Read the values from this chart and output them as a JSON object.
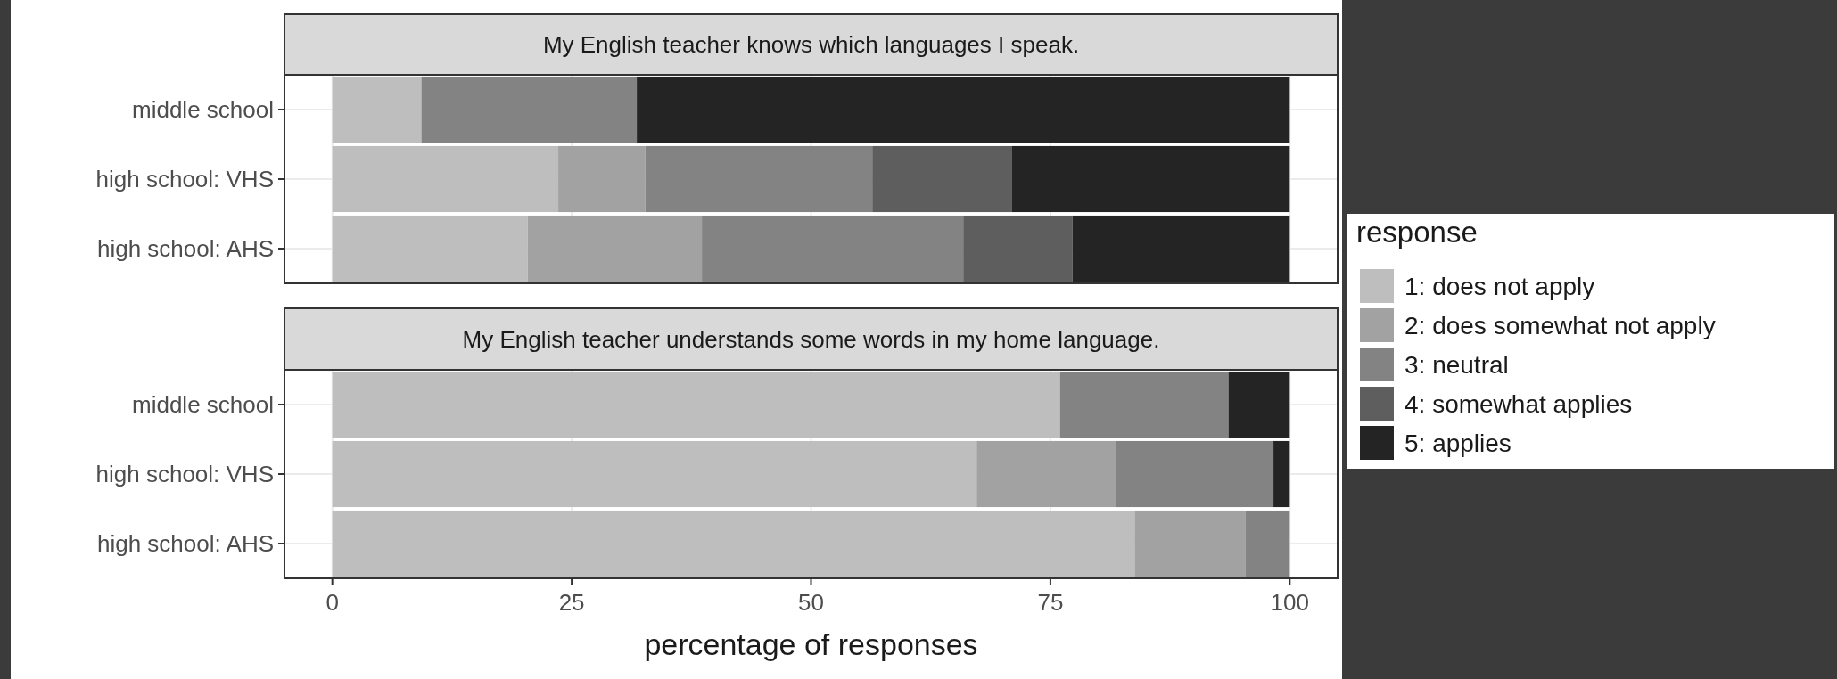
{
  "chart_data": [
    {
      "type": "bar",
      "orientation": "horizontal",
      "stacked": true,
      "title": "My English teacher knows which languages I speak.",
      "categories": [
        "middle school",
        "high school: VHS",
        "high school: AHS"
      ],
      "xlim": [
        -5,
        105
      ],
      "xticks": [
        0,
        25,
        50,
        75,
        100
      ],
      "tick_labels": "y",
      "grid": true,
      "series": [
        {
          "color": "#bebebe",
          "values": [
            9.3,
            23.6,
            20.4
          ]
        },
        {
          "color": "#a2a2a2",
          "values": [
            0,
            9.1,
            18.2
          ]
        },
        {
          "color": "#838383",
          "values": [
            22.5,
            23.7,
            27.3
          ]
        },
        {
          "color": "#5e5e5e",
          "values": [
            0,
            14.6,
            11.4
          ]
        },
        {
          "color": "#242424",
          "values": [
            68.2,
            29,
            22.7
          ]
        }
      ]
    },
    {
      "type": "bar",
      "orientation": "horizontal",
      "stacked": true,
      "title": "My English teacher understands some words in my home language.",
      "xlabel": "percentage of responses",
      "legend_title": "response",
      "categories": [
        "middle school",
        "high school: VHS",
        "high school: AHS"
      ],
      "xlim": [
        -5,
        105
      ],
      "xticks": [
        0,
        25,
        50,
        75,
        100
      ],
      "grid": true,
      "legend": "right",
      "series": [
        {
          "name": "1: does not apply",
          "color": "#bebebe",
          "values": [
            76,
            67.3,
            83.8
          ]
        },
        {
          "name": "2: does somewhat not apply",
          "color": "#a2a2a2",
          "values": [
            0,
            14.6,
            11.6
          ]
        },
        {
          "name": "3: neutral",
          "color": "#838383",
          "values": [
            17.6,
            16.4,
            4.6
          ]
        },
        {
          "name": "4: somewhat applies",
          "color": "#5e5e5e",
          "values": [
            0,
            0,
            0
          ]
        },
        {
          "name": "5: applies",
          "color": "#242424",
          "values": [
            6.4,
            1.7,
            0
          ]
        }
      ]
    }
  ]
}
